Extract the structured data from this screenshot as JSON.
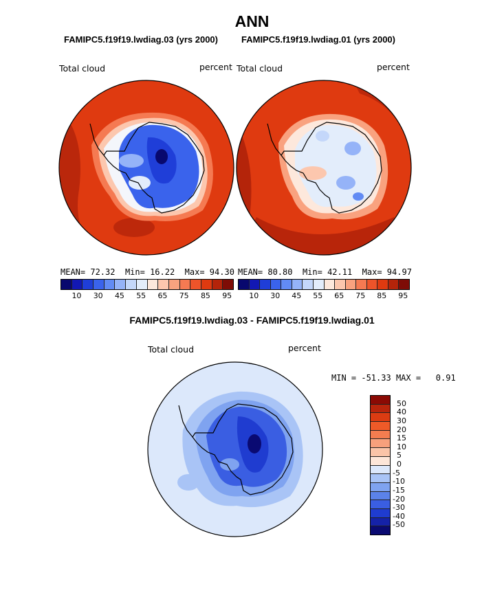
{
  "chart_data": [
    {
      "type": "heatmap",
      "projection": "south-polar-stereographic",
      "title": "ANN",
      "case": "FAMIPC5.f19f19.lwdiag.03 (yrs 2000)",
      "variable": "Total cloud",
      "units": "percent",
      "stats": {
        "mean_label": "MEAN=",
        "mean": "72.32",
        "min_label": "Min=",
        "min": "16.22",
        "max_label": "Max=",
        "max": "94.30"
      },
      "levels": [
        "10",
        "30",
        "45",
        "55",
        "65",
        "75",
        "85",
        "95"
      ],
      "colors": [
        "#08086e",
        "#1218b4",
        "#1f3ed8",
        "#3a63ec",
        "#628bf4",
        "#95b3f8",
        "#c4d7fa",
        "#e3edfb",
        "#fde8dc",
        "#fcc7ae",
        "#f9a27f",
        "#f57a52",
        "#ee542a",
        "#df3a10",
        "#b4240a",
        "#7e0c06"
      ]
    },
    {
      "type": "heatmap",
      "projection": "south-polar-stereographic",
      "case": "FAMIPC5.f19f19.lwdiag.01 (yrs 2000)",
      "variable": "Total cloud",
      "units": "percent",
      "stats": {
        "mean_label": "MEAN=",
        "mean": "80.80",
        "min_label": "Min=",
        "min": "42.11",
        "max_label": "Max=",
        "max": "94.97"
      },
      "levels": [
        "10",
        "30",
        "45",
        "55",
        "65",
        "75",
        "85",
        "95"
      ],
      "colors": [
        "#08086e",
        "#1218b4",
        "#1f3ed8",
        "#3a63ec",
        "#628bf4",
        "#95b3f8",
        "#c4d7fa",
        "#e3edfb",
        "#fde8dc",
        "#fcc7ae",
        "#f9a27f",
        "#f57a52",
        "#ee542a",
        "#df3a10",
        "#b4240a",
        "#7e0c06"
      ]
    },
    {
      "type": "heatmap",
      "projection": "south-polar-stereographic",
      "title": "FAMIPC5.f19f19.lwdiag.03 - FAMIPC5.f19f19.lwdiag.01",
      "variable": "Total cloud",
      "units": "percent",
      "stats": {
        "min_label": "MIN =",
        "min": "-51.33",
        "max_label": "MAX =",
        "max": "0.91"
      },
      "levels": [
        "50",
        "40",
        "30",
        "20",
        "15",
        "10",
        "5",
        "0",
        "-5",
        "-10",
        "-15",
        "-20",
        "-30",
        "-40",
        "-50"
      ],
      "colors": [
        "#8b0a04",
        "#b8250c",
        "#db3c12",
        "#ee5a28",
        "#f47d50",
        "#f7a07c",
        "#fac4a8",
        "#fde6d8",
        "#dce8fb",
        "#a9c4f6",
        "#7fa3f0",
        "#5b82ea",
        "#3a5ee2",
        "#1f3cd0",
        "#1522a8",
        "#0a0a72"
      ]
    }
  ]
}
